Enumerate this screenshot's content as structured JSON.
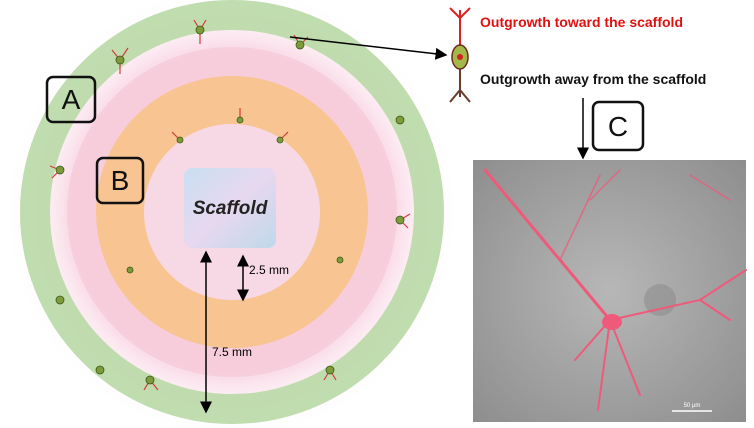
{
  "labels": {
    "toward": "Outgrowth toward the scaffold",
    "away": "Outgrowth away from the scaffold",
    "panel_a": "A",
    "panel_b": "B",
    "panel_c": "C",
    "scaffold": "Scaffold",
    "inner_distance": "2.5 mm",
    "outer_distance": "7.5 mm",
    "scale_bar": "50 µm"
  }
}
